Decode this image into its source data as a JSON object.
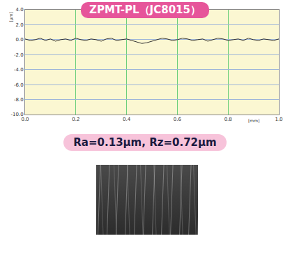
{
  "chart_data": {
    "type": "line",
    "title": "ZPMT-PL（JC8015）",
    "annotation": "Ra=0.13μm, Rz=0.72μm",
    "x_label": "[mm]",
    "y_label": "[μm]",
    "x": [
      0,
      0.02,
      0.04,
      0.06,
      0.08,
      0.1,
      0.12,
      0.14,
      0.16,
      0.18,
      0.2,
      0.22,
      0.24,
      0.26,
      0.28,
      0.3,
      0.32,
      0.34,
      0.36,
      0.38,
      0.4,
      0.42,
      0.44,
      0.46,
      0.48,
      0.5,
      0.52,
      0.54,
      0.56,
      0.58,
      0.6,
      0.62,
      0.64,
      0.66,
      0.68,
      0.7,
      0.72,
      0.74,
      0.76,
      0.78,
      0.8,
      0.82,
      0.84,
      0.86,
      0.88,
      0.9,
      0.92,
      0.94,
      0.96,
      0.98,
      1.0
    ],
    "values": [
      0.1,
      -0.1,
      0.0,
      0.2,
      -0.1,
      0.1,
      -0.2,
      0.0,
      0.1,
      -0.1,
      0.2,
      0.0,
      -0.1,
      0.1,
      0.0,
      -0.2,
      0.1,
      0.2,
      -0.1,
      0.0,
      0.1,
      -0.1,
      -0.3,
      -0.5,
      -0.4,
      -0.2,
      0.0,
      0.2,
      0.1,
      -0.1,
      0.0,
      0.2,
      0.1,
      -0.1,
      0.0,
      0.1,
      -0.2,
      0.0,
      0.2,
      0.1,
      -0.1,
      0.0,
      0.1,
      -0.1,
      0.2,
      0.0,
      -0.1,
      0.1,
      0.0,
      -0.1,
      0.1
    ],
    "color": "#333333",
    "xlim": [
      0,
      1
    ],
    "ylim": [
      -10,
      4
    ],
    "xticks": [
      {
        "value": 0,
        "label": "0.0"
      },
      {
        "value": 0.2,
        "label": "0.2"
      },
      {
        "value": 0.4,
        "label": "0.4"
      },
      {
        "value": 0.6,
        "label": "0.6"
      },
      {
        "value": 0.8,
        "label": "0.8"
      },
      {
        "value": 1,
        "label": "1.0"
      }
    ],
    "yticks": [
      {
        "value": 4,
        "label": "4.0"
      },
      {
        "value": 2,
        "label": "2.0"
      },
      {
        "value": 0,
        "label": "0.0"
      },
      {
        "value": -2,
        "label": "-2.0"
      },
      {
        "value": -4,
        "label": "-4.0"
      },
      {
        "value": -6,
        "label": "-6.0"
      },
      {
        "value": -8,
        "label": "-8.0"
      },
      {
        "value": -10,
        "label": "-10.0"
      }
    ],
    "grid": true
  }
}
